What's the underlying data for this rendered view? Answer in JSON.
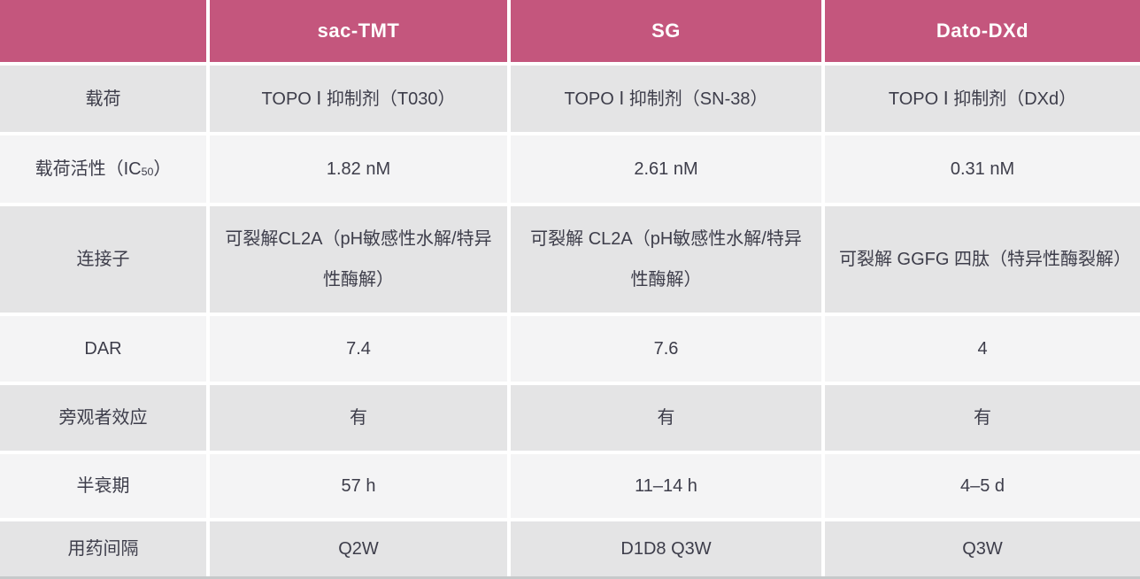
{
  "table": {
    "header": {
      "corner": "",
      "columns": [
        "sac-TMT",
        "SG",
        "Dato-DXd"
      ]
    },
    "rows": [
      {
        "label": "载荷",
        "values": [
          "TOPO Ⅰ 抑制剂（T030）",
          "TOPO Ⅰ 抑制剂（SN-38）",
          "TOPO Ⅰ 抑制剂（DXd）"
        ]
      },
      {
        "label": "载荷活性（IC",
        "label_sub": "50",
        "label_end": "）",
        "values": [
          "1.82 nM",
          "2.61 nM",
          "0.31 nM"
        ]
      },
      {
        "label": "连接子",
        "values": [
          "可裂解CL2A（pH敏感性水解/特异性酶解）",
          "可裂解 CL2A（pH敏感性水解/特异性酶解）",
          "可裂解 GGFG 四肽（特异性酶裂解）"
        ]
      },
      {
        "label": "DAR",
        "values": [
          "7.4",
          "7.6",
          "4"
        ]
      },
      {
        "label": "旁观者效应",
        "values": [
          "有",
          "有",
          "有"
        ]
      },
      {
        "label": "半衰期",
        "values": [
          "57 h",
          "11–14 h",
          "4–5 d"
        ]
      },
      {
        "label": "用药间隔",
        "values": [
          "Q2W",
          "D1D8 Q3W",
          "Q3W"
        ]
      }
    ]
  },
  "colors": {
    "header_bg": "#c4567d",
    "header_text": "#ffffff",
    "row_odd_bg": "#e4e4e5",
    "row_even_bg": "#f4f4f5",
    "cell_text": "#3d3d4a",
    "separator": "#ffffff",
    "bottom_border": "#c6c9ca"
  }
}
